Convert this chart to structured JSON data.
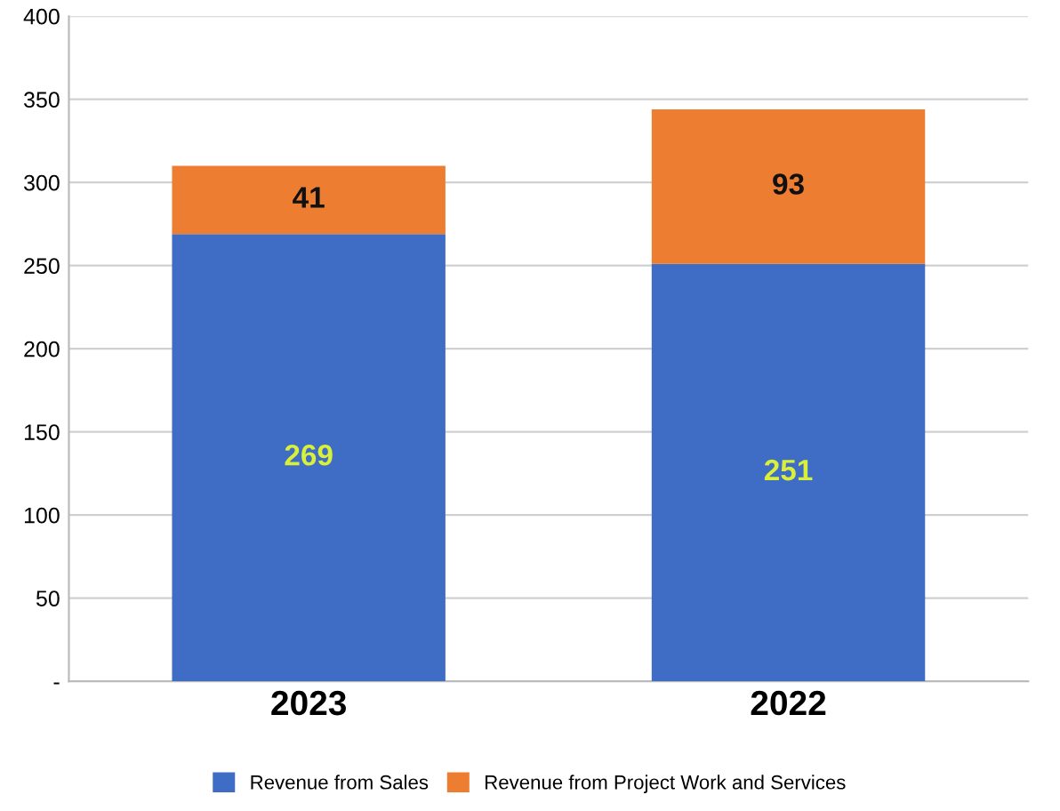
{
  "chart_data": {
    "type": "bar",
    "stacked": true,
    "categories": [
      "2023",
      "2022"
    ],
    "series": [
      {
        "name": "Revenue from Sales",
        "color": "#3f6cc4",
        "values": [
          269,
          251
        ]
      },
      {
        "name": "Revenue from Project Work and Services",
        "color": "#ed7d31",
        "values": [
          41,
          93
        ]
      }
    ],
    "ylim": [
      0,
      400
    ],
    "yticks": [
      {
        "value": 0,
        "label": "-"
      },
      50,
      100,
      150,
      200,
      250,
      300,
      350,
      400
    ],
    "grid": "y",
    "legend": "bottom",
    "data_labels": true
  }
}
